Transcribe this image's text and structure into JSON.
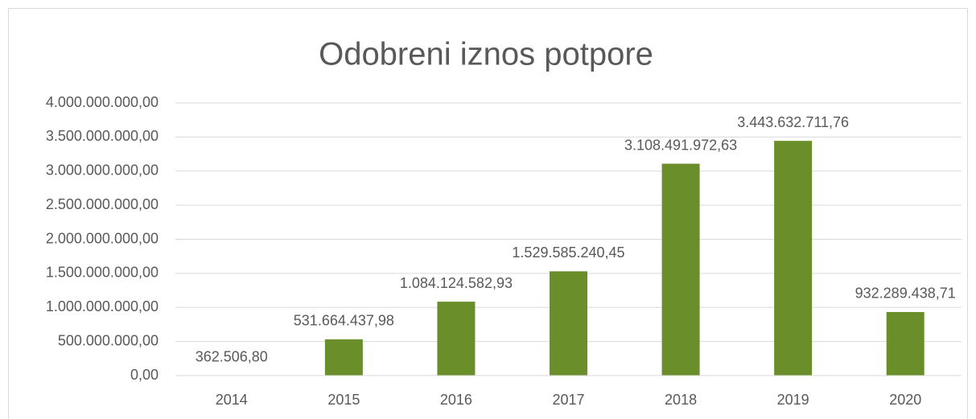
{
  "chart_data": {
    "type": "bar",
    "title": "Odobreni iznos potpore",
    "categories": [
      "2014",
      "2015",
      "2016",
      "2017",
      "2018",
      "2019",
      "2020"
    ],
    "values": [
      362506.8,
      531664437.98,
      1084124582.93,
      1529585240.45,
      3108491972.63,
      3443632711.76,
      932289438.71
    ],
    "value_labels": [
      "362.506,80",
      "531.664.437,98",
      "1.084.124.582,93",
      "1.529.585.240,45",
      "3.108.491.972,63",
      "3.443.632.711,76",
      "932.289.438,71"
    ],
    "color": "#6a8f2a",
    "ylim": [
      0,
      4000000000
    ],
    "yticks": [
      {
        "value": 0,
        "label": "0,00"
      },
      {
        "value": 500000000,
        "label": "500.000.000,00"
      },
      {
        "value": 1000000000,
        "label": "1.000.000.000,00"
      },
      {
        "value": 1500000000,
        "label": "1.500.000.000,00"
      },
      {
        "value": 2000000000,
        "label": "2.000.000.000,00"
      },
      {
        "value": 2500000000,
        "label": "2.500.000.000,00"
      },
      {
        "value": 3000000000,
        "label": "3.000.000.000,00"
      },
      {
        "value": 3500000000,
        "label": "3.500.000.000,00"
      },
      {
        "value": 4000000000,
        "label": "4.000.000.000,00"
      }
    ],
    "grid": true
  }
}
